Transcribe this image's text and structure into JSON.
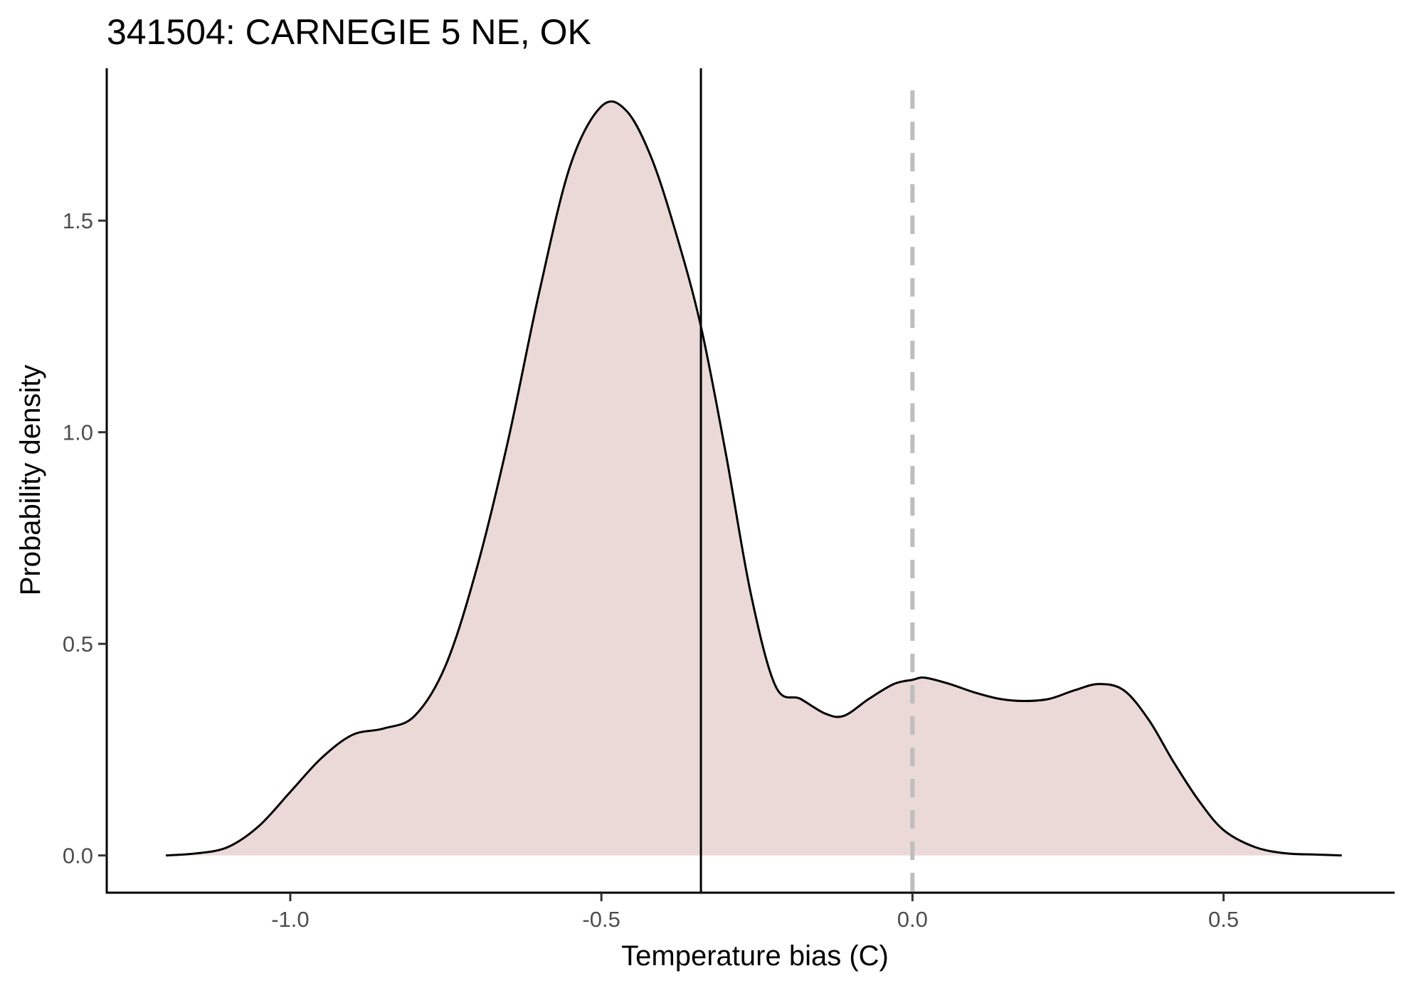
{
  "chart_data": {
    "type": "area",
    "title": "341504: CARNEGIE 5 NE, OK",
    "xlabel": "Temperature bias (C)",
    "ylabel": "Probability density",
    "xlim": [
      -1.295,
      0.775
    ],
    "ylim": [
      -0.088,
      1.86
    ],
    "x_ticks": [
      -1.0,
      -0.5,
      0.0,
      0.5
    ],
    "x_tick_labels": [
      "-1.0",
      "-0.5",
      "0.0",
      "0.5"
    ],
    "y_ticks": [
      0.0,
      0.5,
      1.0,
      1.5
    ],
    "y_tick_labels": [
      "0.0",
      "0.5",
      "1.0",
      "1.5"
    ],
    "grid": false,
    "fill_color": "#ead9d7",
    "line_color": "#000000",
    "series": [
      {
        "x": [
          -1.2,
          -1.15,
          -1.1,
          -1.05,
          -1.0,
          -0.95,
          -0.9,
          -0.85,
          -0.8,
          -0.75,
          -0.7,
          -0.65,
          -0.6,
          -0.55,
          -0.5,
          -0.46,
          -0.42,
          -0.38,
          -0.34,
          -0.3,
          -0.26,
          -0.22,
          -0.18,
          -0.14,
          -0.11,
          -0.07,
          -0.03,
          0.0,
          0.02,
          0.06,
          0.1,
          0.14,
          0.18,
          0.22,
          0.26,
          0.3,
          0.34,
          0.38,
          0.42,
          0.46,
          0.5,
          0.55,
          0.6,
          0.65,
          0.69
        ],
        "y": [
          0.0,
          0.005,
          0.02,
          0.07,
          0.15,
          0.23,
          0.285,
          0.3,
          0.33,
          0.45,
          0.68,
          0.98,
          1.33,
          1.63,
          1.77,
          1.76,
          1.65,
          1.47,
          1.25,
          0.95,
          0.62,
          0.4,
          0.37,
          0.335,
          0.33,
          0.37,
          0.405,
          0.415,
          0.42,
          0.405,
          0.385,
          0.37,
          0.365,
          0.37,
          0.39,
          0.405,
          0.39,
          0.32,
          0.22,
          0.13,
          0.06,
          0.02,
          0.005,
          0.002,
          0.0
        ]
      }
    ],
    "reference_lines": [
      {
        "orientation": "vertical",
        "x": -0.34,
        "style": "solid",
        "color": "#000000"
      },
      {
        "orientation": "vertical",
        "x": 0.0,
        "style": "dashed",
        "color": "#bebebe"
      }
    ]
  }
}
